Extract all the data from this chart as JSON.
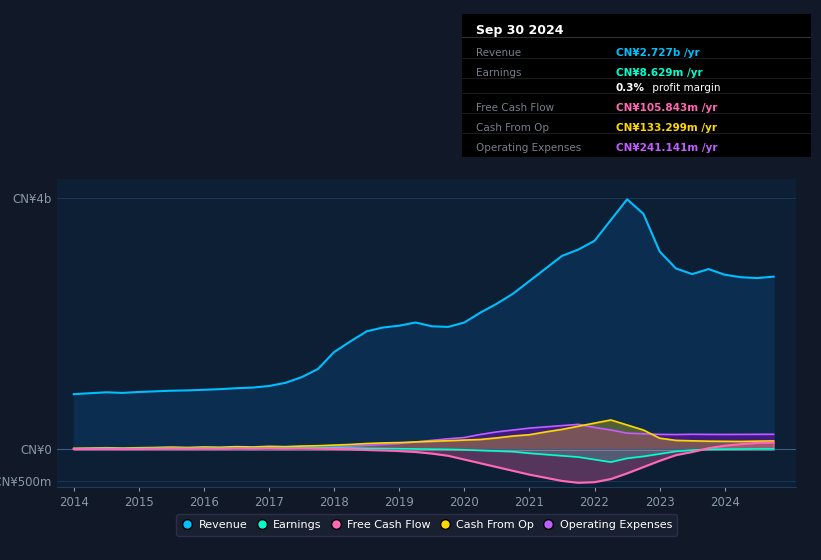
{
  "bg_color": "#111827",
  "plot_bg_color": "#0d1f35",
  "title": "Sep 30 2024",
  "ylim": [
    -600,
    4300
  ],
  "xlim": [
    2013.75,
    2025.1
  ],
  "yticks": [
    -500,
    0,
    4000
  ],
  "ytick_labels": [
    "-CN¥500m",
    "CN¥0",
    "CN¥4b"
  ],
  "xtick_years": [
    2014,
    2015,
    2016,
    2017,
    2018,
    2019,
    2020,
    2021,
    2022,
    2023,
    2024
  ],
  "grid_color": "#1e3a5f",
  "revenue_color": "#00bfff",
  "earnings_color": "#00ffcc",
  "fcf_color": "#ff69b4",
  "cashop_color": "#ffd700",
  "opex_color": "#bf5fff",
  "revenue_fill": "#0a2d50",
  "earnings_fill": "#00ffcc",
  "fcf_fill": "#ff69b4",
  "cashop_fill": "#ffd700",
  "opex_fill": "#6a0dad",
  "legend": [
    {
      "label": "Revenue",
      "color": "#00bfff"
    },
    {
      "label": "Earnings",
      "color": "#00ffcc"
    },
    {
      "label": "Free Cash Flow",
      "color": "#ff69b4"
    },
    {
      "label": "Cash From Op",
      "color": "#ffd700"
    },
    {
      "label": "Operating Expenses",
      "color": "#bf5fff"
    }
  ],
  "info_title": "Sep 30 2024",
  "info_rows": [
    {
      "label": "Revenue",
      "value": "CN¥2.727b /yr",
      "color": "#00bfff"
    },
    {
      "label": "Earnings",
      "value": "CN¥8.629m /yr",
      "color": "#00ffcc"
    },
    {
      "label": "",
      "value": "0.3% profit margin",
      "color": "#ffffff"
    },
    {
      "label": "Free Cash Flow",
      "value": "CN¥105.843m /yr",
      "color": "#ff69b4"
    },
    {
      "label": "Cash From Op",
      "value": "CN¥133.299m /yr",
      "color": "#ffd700"
    },
    {
      "label": "Operating Expenses",
      "value": "CN¥241.141m /yr",
      "color": "#bf5fff"
    }
  ]
}
